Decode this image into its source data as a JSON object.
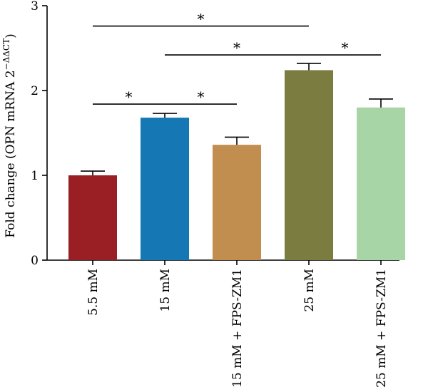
{
  "chart_data": {
    "type": "bar",
    "ylabel": "Fold change (OPN mRNA 2",
    "ylabel_superscript": "−ΔΔCT",
    "ylabel_close": ")",
    "ylim": [
      0,
      3
    ],
    "yticks": [
      "0",
      "1",
      "2",
      "3"
    ],
    "grid": false,
    "categories": [
      "5.5 mM",
      "15 mM",
      "15 mM + FPS-ZM1",
      "25 mM",
      "25 mM + FPS-ZM1"
    ],
    "values": [
      1.0,
      1.68,
      1.36,
      2.24,
      1.8
    ],
    "errors": [
      0.05,
      0.05,
      0.09,
      0.08,
      0.1
    ],
    "colors": [
      "#9a1f24",
      "#1577b3",
      "#c28e4f",
      "#7b7d40",
      "#a8d5a6"
    ],
    "significance": [
      {
        "from": 0,
        "to": 1,
        "y": 1.84,
        "label": "*"
      },
      {
        "from": 1,
        "to": 2,
        "y": 1.84,
        "label": "*"
      },
      {
        "from": 0,
        "to": 3,
        "y": 2.76,
        "label": "*"
      },
      {
        "from": 1,
        "to": 3,
        "y": 2.42,
        "label": "*"
      },
      {
        "from": 3,
        "to": 4,
        "y": 2.42,
        "label": "*"
      }
    ]
  }
}
